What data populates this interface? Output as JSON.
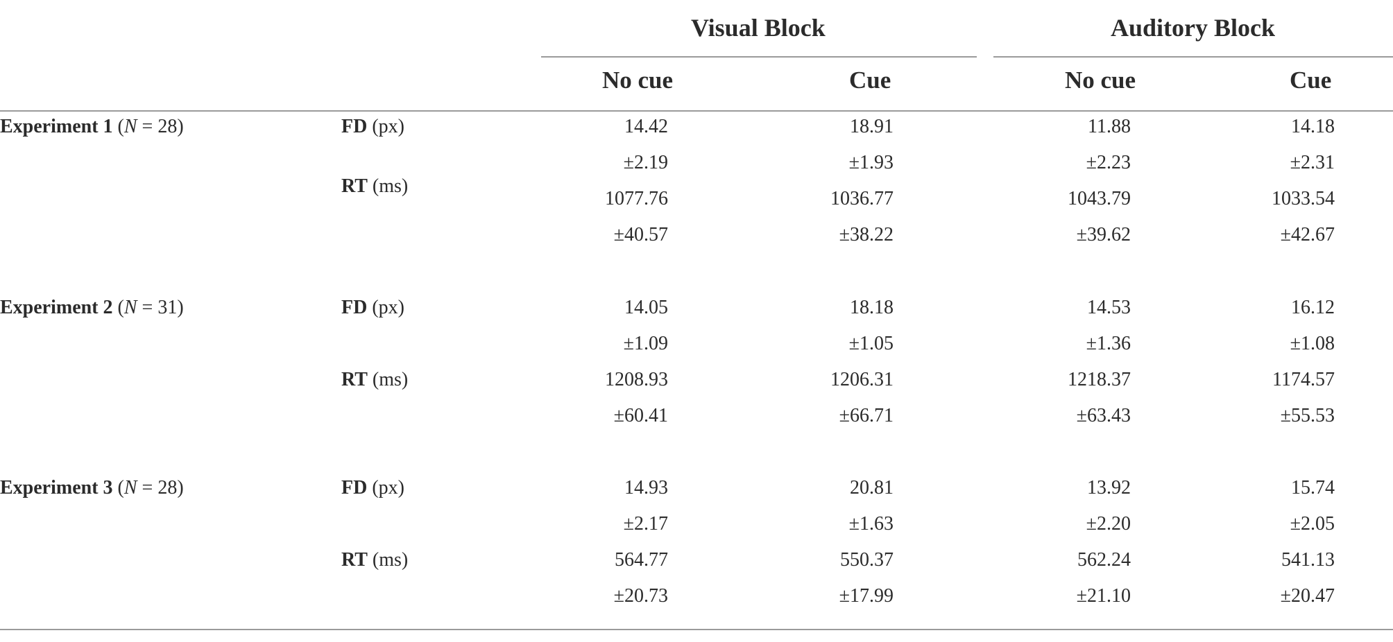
{
  "header": {
    "groups": [
      "Visual Block",
      "Auditory Block"
    ],
    "columns": [
      "No cue",
      "Cue",
      "No cue",
      "Cue"
    ]
  },
  "experiments": [
    {
      "name": "Experiment 1",
      "n_symbol": "N",
      "n_value": "28",
      "rows": [
        {
          "measure": "FD",
          "unit": "(px)",
          "means": [
            "14.42",
            "18.91",
            "11.88",
            "14.18"
          ],
          "sds": [
            "±2.19",
            "±1.93",
            "±2.23",
            "±2.31"
          ]
        },
        {
          "measure": "RT",
          "unit": "(ms)",
          "means": [
            "1077.76",
            "1036.77",
            "1043.79",
            "1033.54"
          ],
          "sds": [
            "±40.57",
            "±38.22",
            "±39.62",
            "±42.67"
          ]
        }
      ]
    },
    {
      "name": "Experiment 2",
      "n_symbol": "N",
      "n_value": "31",
      "rows": [
        {
          "measure": "FD",
          "unit": "(px)",
          "means": [
            "14.05",
            "18.18",
            "14.53",
            "16.12"
          ],
          "sds": [
            "±1.09",
            "±1.05",
            "±1.36",
            "±1.08"
          ]
        },
        {
          "measure": "RT",
          "unit": "(ms)",
          "means": [
            "1208.93",
            "1206.31",
            "1218.37",
            "1174.57"
          ],
          "sds": [
            "±60.41",
            "±66.71",
            "±63.43",
            "±55.53"
          ]
        }
      ]
    },
    {
      "name": "Experiment 3",
      "n_symbol": "N",
      "n_value": "28",
      "rows": [
        {
          "measure": "FD",
          "unit": "(px)",
          "means": [
            "14.93",
            "20.81",
            "13.92",
            "15.74"
          ],
          "sds": [
            "±2.17",
            "±1.63",
            "±2.20",
            "±2.05"
          ]
        },
        {
          "measure": "RT",
          "unit": "(ms)",
          "means": [
            "564.77",
            "550.37",
            "562.24",
            "541.13"
          ],
          "sds": [
            "±20.73",
            "±17.99",
            "±21.10",
            "±20.47"
          ]
        }
      ]
    }
  ]
}
